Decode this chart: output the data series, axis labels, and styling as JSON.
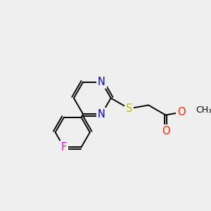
{
  "background_color": "#efefef",
  "bond_color": "#000000",
  "atom_colors": {
    "N": "#0000ee",
    "S": "#bbbb00",
    "O": "#ff2200",
    "F": "#ee00ee",
    "C": "#000000"
  },
  "bond_width": 1.4,
  "font_size": 10.5,
  "figsize": [
    3.0,
    3.0
  ],
  "dpi": 100
}
